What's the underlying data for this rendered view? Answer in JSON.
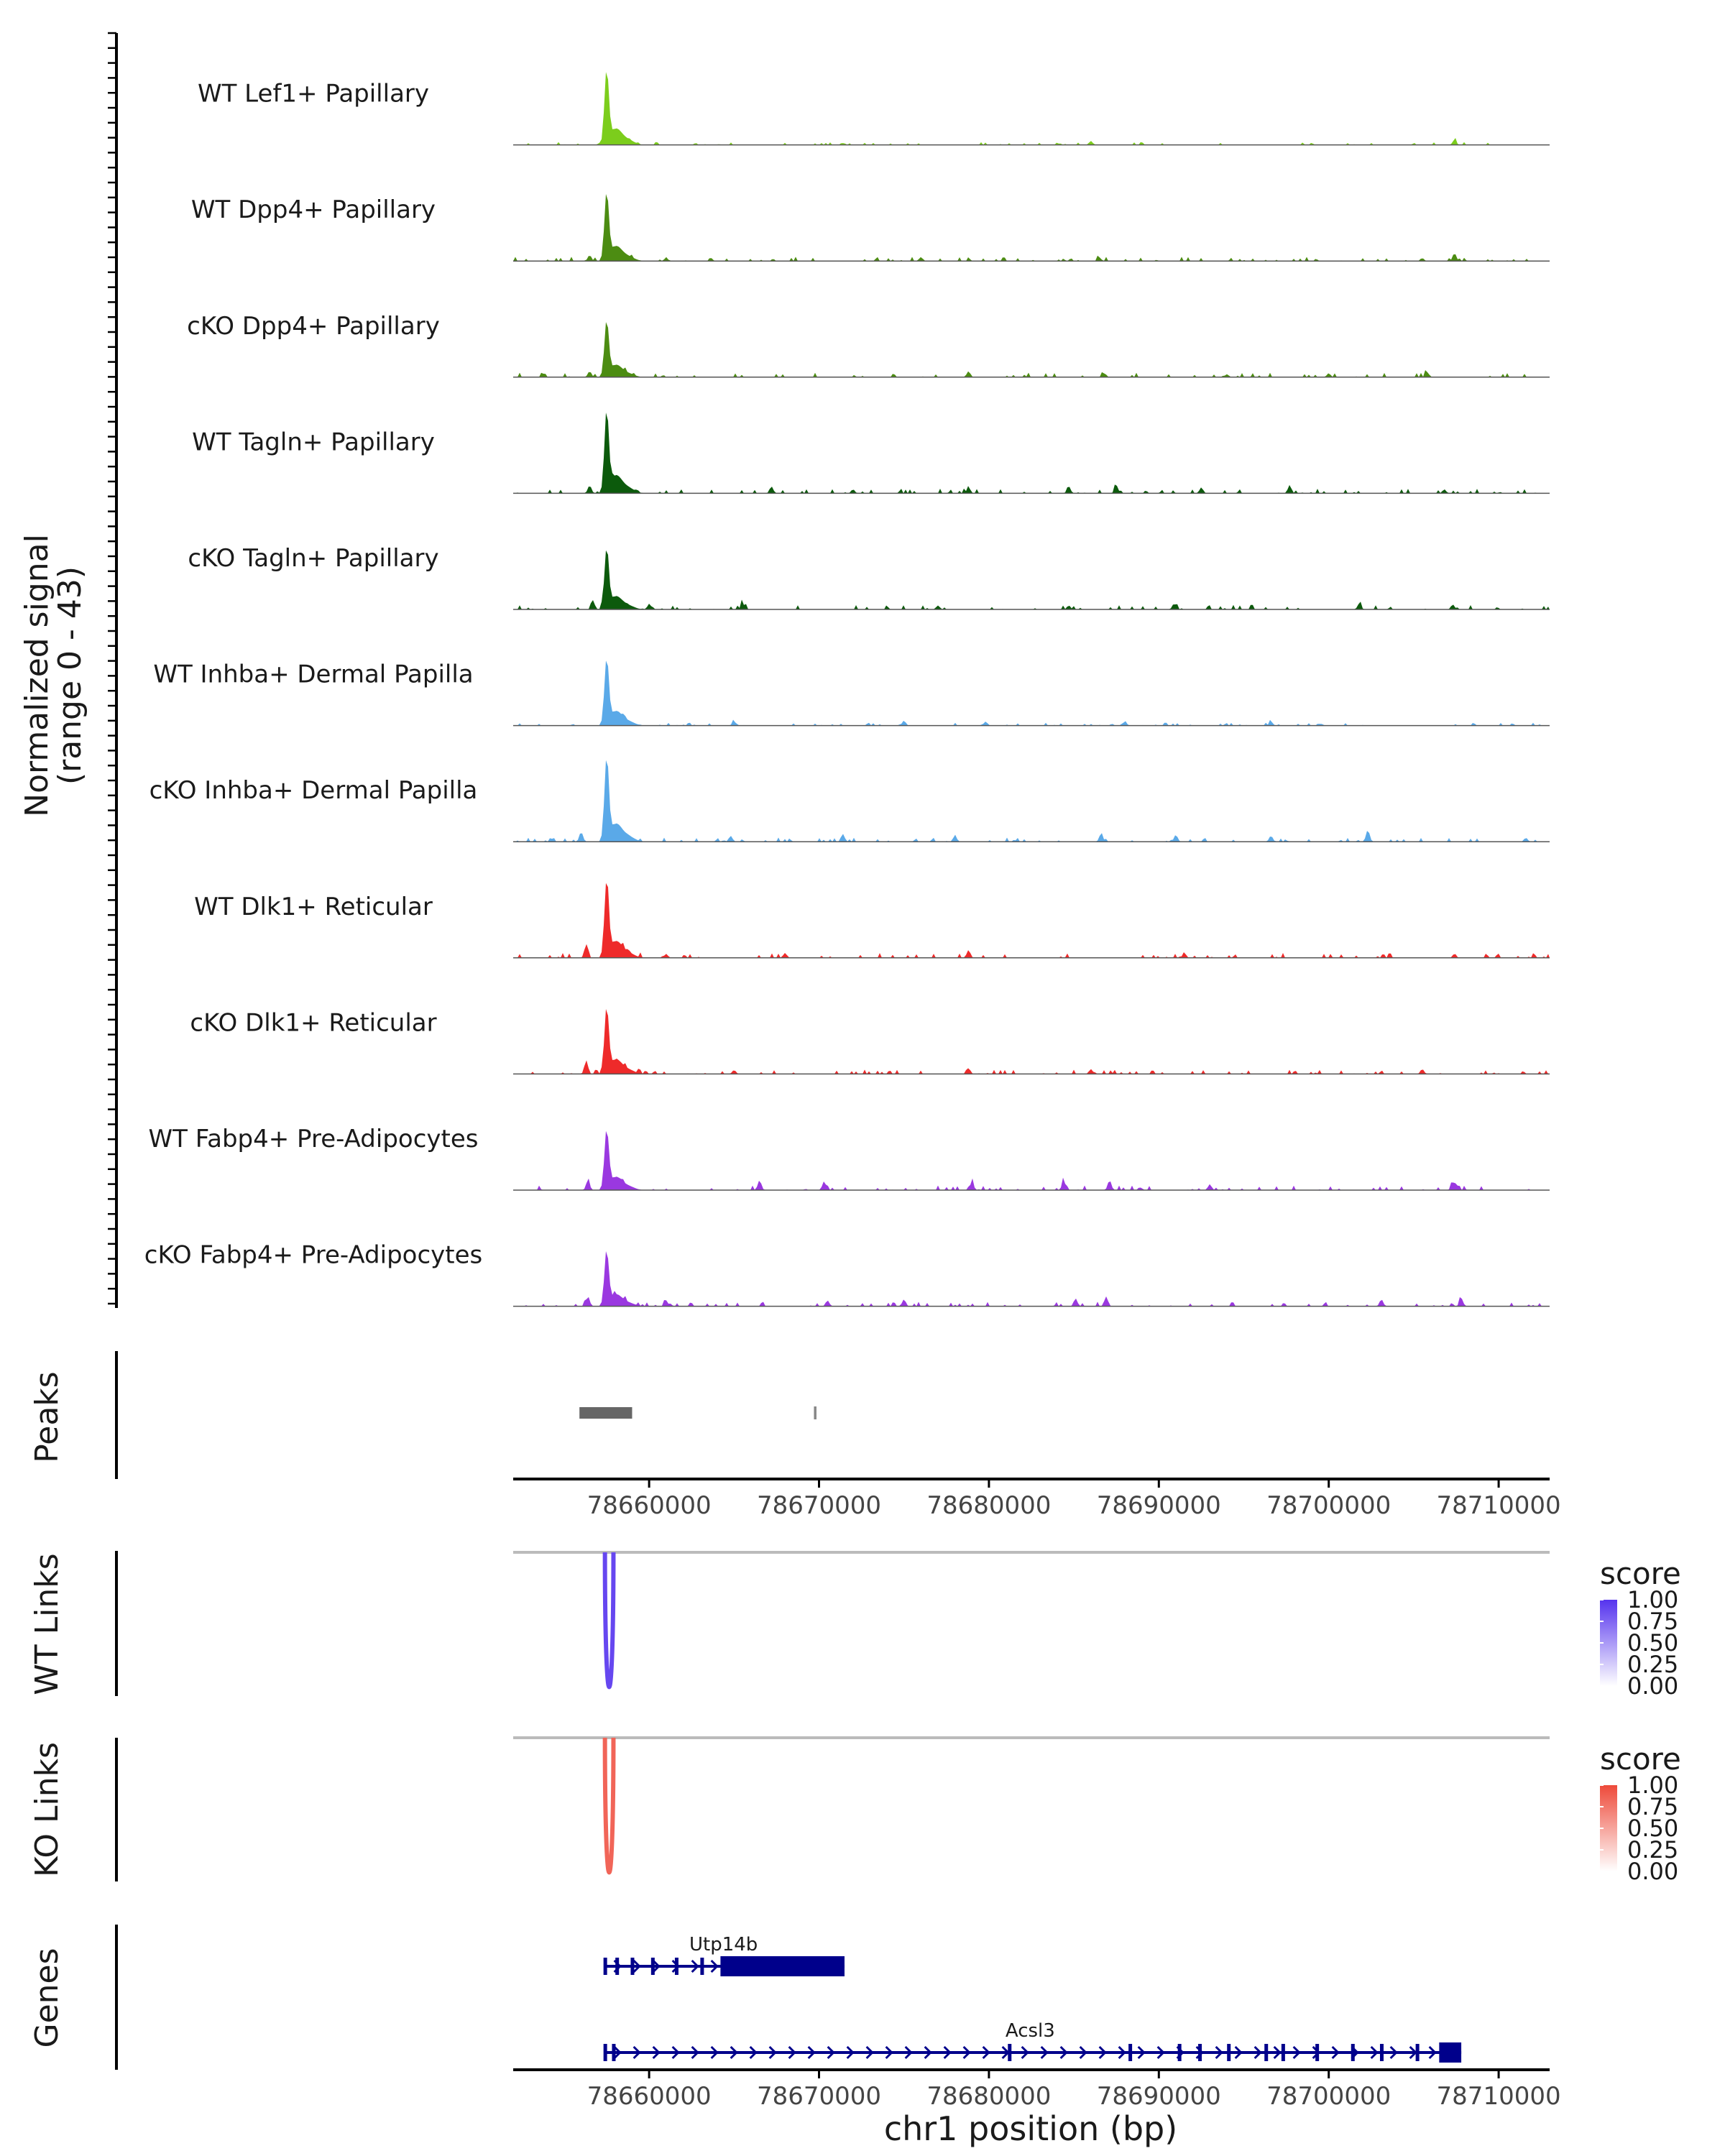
{
  "chart_data": {
    "type": "genome-coverage-plot",
    "region": {
      "chrom": "chr1",
      "start": 78652000,
      "end": 78713000
    },
    "coverage": {
      "ylabel_line1": "Normalized signal",
      "ylabel_line2": "(range 0 - 43)",
      "range": [
        0,
        43
      ],
      "tracks": [
        {
          "name": "WT Lef1+ Papillary",
          "color": "#7ccd1c",
          "peak": 37,
          "noise": 0.8,
          "bumps": [
            [
              78686000,
              2
            ],
            [
              78707400,
              2.5
            ]
          ]
        },
        {
          "name": "WT Dpp4+ Papillary",
          "color": "#4c8c12",
          "peak": 34,
          "noise": 1.2,
          "bumps": [
            [
              78656500,
              3
            ],
            [
              78661000,
              1.5
            ],
            [
              78676000,
              2
            ],
            [
              78686500,
              1.8
            ],
            [
              78705500,
              1.5
            ],
            [
              78707400,
              4
            ]
          ]
        },
        {
          "name": "cKO Dpp4+ Papillary",
          "color": "#4c8c12",
          "peak": 28,
          "noise": 1.3,
          "bumps": [
            [
              78656500,
              3
            ],
            [
              78678800,
              3
            ],
            [
              78686800,
              2
            ],
            [
              78694000,
              1.5
            ],
            [
              78700000,
              2
            ],
            [
              78705800,
              2.5
            ]
          ]
        },
        {
          "name": "WT Tagln+ Papillary",
          "color": "#0c5a0c",
          "peak": 41,
          "noise": 1.3,
          "bumps": [
            [
              78656500,
              4
            ],
            [
              78667200,
              3.5
            ],
            [
              78672000,
              2
            ],
            [
              78678800,
              3
            ],
            [
              78684700,
              3.5
            ],
            [
              78687500,
              4
            ],
            [
              78692500,
              3
            ],
            [
              78697700,
              4
            ],
            [
              78706800,
              2
            ]
          ]
        },
        {
          "name": "cKO Tagln+ Papillary",
          "color": "#0c5a0c",
          "peak": 30,
          "noise": 1.3,
          "bumps": [
            [
              78656700,
              4
            ],
            [
              78660000,
              2.5
            ],
            [
              78665500,
              3
            ],
            [
              78677000,
              2
            ],
            [
              78684700,
              2
            ],
            [
              78690900,
              3
            ],
            [
              78701800,
              3
            ],
            [
              78707300,
              2.5
            ]
          ]
        },
        {
          "name": "WT Inhba+ Dermal Papilla",
          "color": "#5aa9e8",
          "peak": 33,
          "noise": 0.8,
          "bumps": [
            [
              78665000,
              2
            ],
            [
              78675000,
              2.5
            ],
            [
              78679800,
              2
            ],
            [
              78688000,
              2
            ],
            [
              78696600,
              2
            ]
          ]
        },
        {
          "name": "cKO Inhba+ Dermal Papilla",
          "color": "#5aa9e8",
          "peak": 41,
          "noise": 1.2,
          "bumps": [
            [
              78656000,
              5
            ],
            [
              78664800,
              3
            ],
            [
              78671400,
              4
            ],
            [
              78678000,
              3
            ],
            [
              78686600,
              4
            ],
            [
              78691000,
              3.5
            ],
            [
              78696600,
              3
            ],
            [
              78702300,
              6
            ],
            [
              78711600,
              2
            ]
          ]
        },
        {
          "name": "WT Dlk1+ Reticular",
          "color": "#ee2a2a",
          "peak": 38,
          "noise": 1.4,
          "bumps": [
            [
              78656300,
              7
            ],
            [
              78661000,
              2
            ],
            [
              78668000,
              2.5
            ],
            [
              78678800,
              4
            ],
            [
              78691500,
              2.5
            ],
            [
              78707400,
              2
            ]
          ]
        },
        {
          "name": "cKO Dlk1+ Reticular",
          "color": "#ee2a2a",
          "peak": 33,
          "noise": 1.3,
          "bumps": [
            [
              78656300,
              7
            ],
            [
              78665000,
              2
            ],
            [
              78678800,
              3
            ],
            [
              78686000,
              2.5
            ],
            [
              78705500,
              2.5
            ]
          ]
        },
        {
          "name": "WT Fabp4+ Pre-Adipocytes",
          "color": "#9a38e0",
          "peak": 30,
          "noise": 1.3,
          "bumps": [
            [
              78656400,
              5
            ],
            [
              78666500,
              5
            ],
            [
              78670300,
              4.5
            ],
            [
              78679000,
              4
            ],
            [
              78684400,
              4.5
            ],
            [
              78687100,
              5
            ],
            [
              78693000,
              3
            ],
            [
              78707300,
              4
            ]
          ]
        },
        {
          "name": "cKO Fabp4+ Pre-Adipocytes",
          "color": "#9a38e0",
          "peak": 27,
          "noise": 1.3,
          "bumps": [
            [
              78656400,
              5
            ],
            [
              78661000,
              3
            ],
            [
              78670500,
              3
            ],
            [
              78675000,
              3.5
            ],
            [
              78685100,
              4
            ],
            [
              78686900,
              5
            ],
            [
              78703100,
              3.5
            ],
            [
              78707800,
              4
            ]
          ]
        }
      ]
    },
    "peaks": {
      "label": "Peaks",
      "color": "#666666",
      "intervals": [
        [
          78655900,
          78659000
        ],
        [
          78669700,
          78669850
        ]
      ]
    },
    "axis": {
      "ticks": [
        78660000,
        78670000,
        78680000,
        78690000,
        78700000,
        78710000
      ],
      "tick_labels": [
        "78660000",
        "78670000",
        "78680000",
        "78690000",
        "78700000",
        "78710000"
      ],
      "xlabel": "chr1 position (bp)"
    },
    "links": [
      {
        "label": "WT Links",
        "color_high": "#5533ee",
        "color_low": "#ffffff",
        "arcs": [
          {
            "start": 78657400,
            "end": 78657900,
            "score": 0.9
          }
        ]
      },
      {
        "label": "KO Links",
        "color_high": "#ee4a3a",
        "color_low": "#ffffff",
        "arcs": [
          {
            "start": 78657400,
            "end": 78657900,
            "score": 0.85
          }
        ]
      }
    ],
    "legend": {
      "title": "score",
      "values": [
        "1.00",
        "0.75",
        "0.50",
        "0.25",
        "0.00"
      ]
    },
    "genes": {
      "label": "Genes",
      "color": "#00008b",
      "items": [
        {
          "name": "Utp14b",
          "start": 78657400,
          "end": 78671500,
          "cds_start": 78664200,
          "cds_end": 78671500,
          "exons": [
            78657400,
            78658100,
            78659000,
            78660200,
            78661600,
            78663100
          ]
        },
        {
          "name": "Acsl3",
          "start": 78657400,
          "end": 78707800,
          "cds_start": 78706500,
          "cds_end": 78707800,
          "exons": [
            78657400,
            78657900,
            78681200,
            78688300,
            78691200,
            78692400,
            78694100,
            78696300,
            78697300,
            78699300,
            78701400,
            78703100,
            78705200
          ]
        }
      ]
    }
  }
}
